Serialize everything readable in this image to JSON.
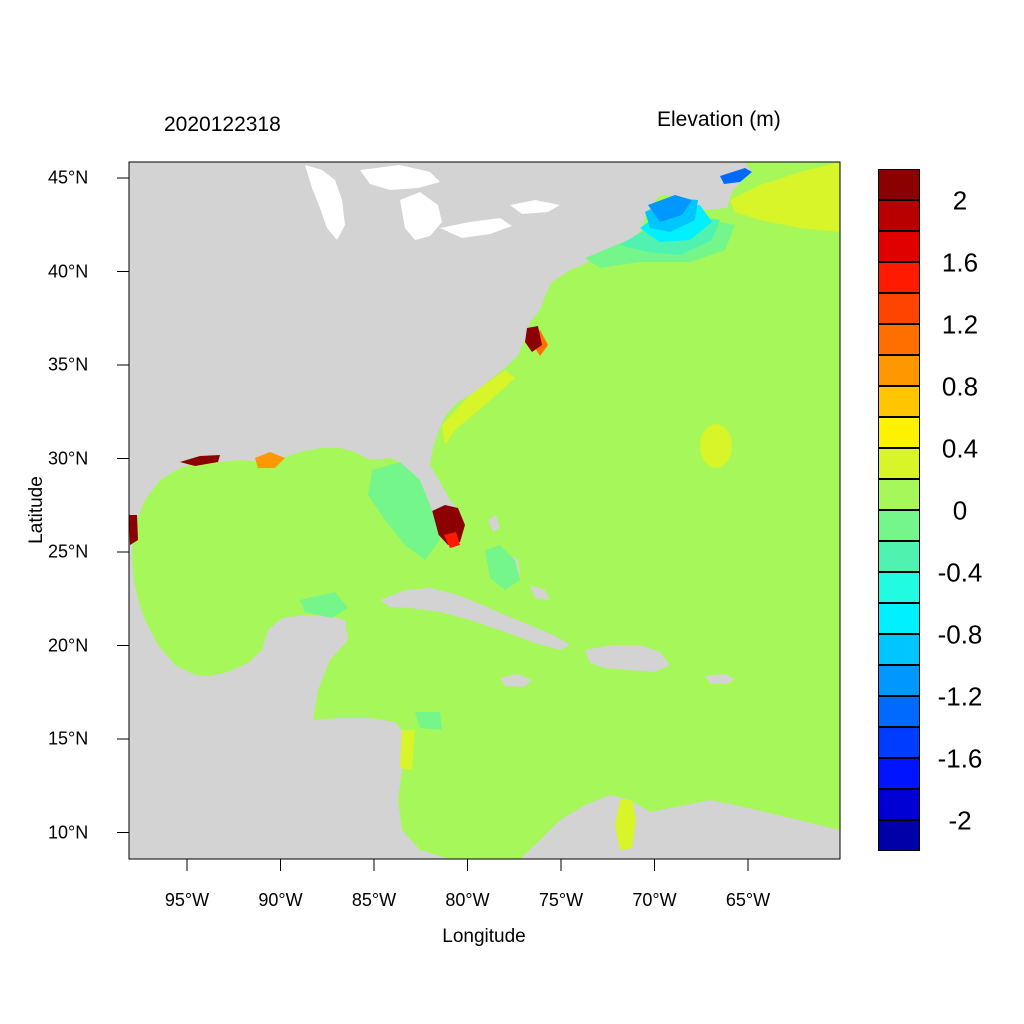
{
  "title_left": "2020122318",
  "title_right": "Elevation (m)",
  "xlabel": "Longitude",
  "ylabel": "Latitude",
  "x_ticks": [
    "95°W",
    "90°W",
    "85°W",
    "80°W",
    "75°W",
    "70°W",
    "65°W"
  ],
  "y_ticks": [
    "45°N",
    "40°N",
    "35°N",
    "30°N",
    "25°N",
    "20°N",
    "15°N",
    "10°N"
  ],
  "map_extent": {
    "lon": [
      -98,
      -60
    ],
    "lat": [
      8.5,
      46
    ]
  },
  "legend": {
    "colors": [
      "#8b0000",
      "#b80000",
      "#e00000",
      "#ff1a00",
      "#ff4400",
      "#ff6f00",
      "#ff9800",
      "#ffc600",
      "#fff200",
      "#d7f528",
      "#a6f75a",
      "#75f68a",
      "#4ff2b0",
      "#21fce0",
      "#00f0ff",
      "#00c6ff",
      "#0098ff",
      "#006aff",
      "#003cff",
      "#0014ff",
      "#0000d4",
      "#0000a8"
    ],
    "labels": [
      "2",
      "1.6",
      "1.2",
      "0.8",
      "0.4",
      "0",
      "-0.4",
      "-0.8",
      "-1.2",
      "-1.6",
      "-2"
    ]
  },
  "map_colors": {
    "land": "#d3d3d3",
    "lake": "#ffffff",
    "ocean_base": "#a6f75a"
  }
}
